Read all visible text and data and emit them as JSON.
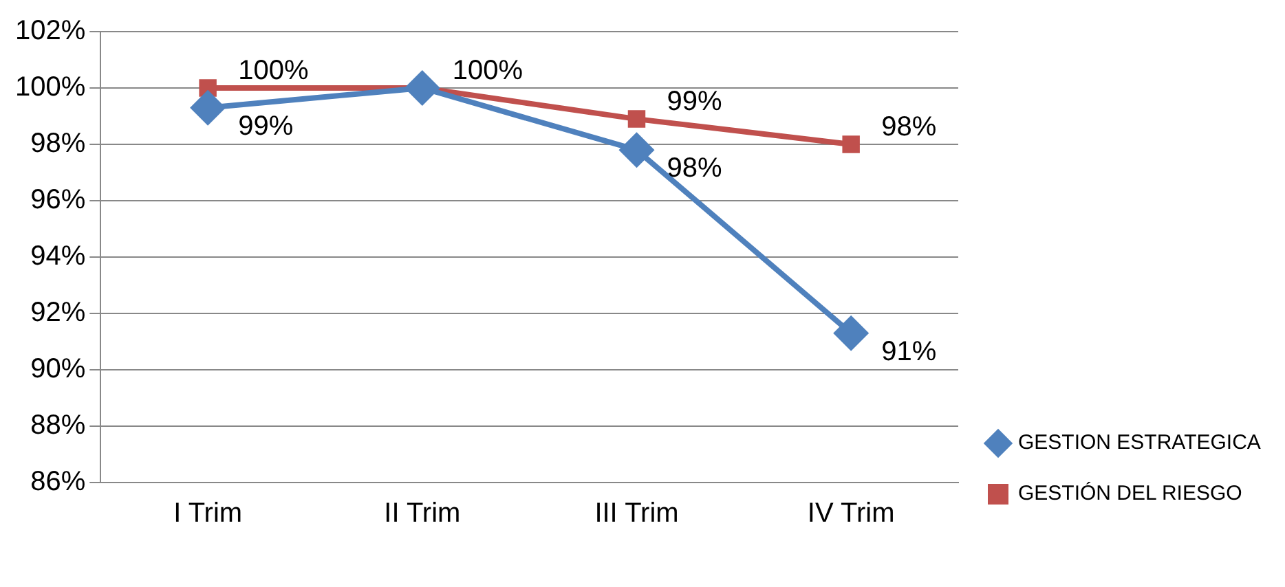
{
  "chart_data": {
    "type": "line",
    "categories": [
      "I Trim",
      "II Trim",
      "III Trim",
      "IV Trim"
    ],
    "series": [
      {
        "name": "GESTION ESTRATEGICA",
        "color": "#4f81bd",
        "marker": "diamond",
        "values": [
          99.3,
          100,
          97.8,
          91.3
        ],
        "value_labels": [
          "99%",
          null,
          "98%",
          "91%"
        ]
      },
      {
        "name": "GESTIÓN DEL RIESGO",
        "color": "#c0504d",
        "marker": "square",
        "values": [
          100,
          100,
          98.9,
          98
        ],
        "value_labels": [
          "100%",
          "100%",
          "99%",
          "98%"
        ]
      }
    ],
    "ylim": [
      86,
      102
    ],
    "yticks": [
      {
        "value": 86,
        "label": "86%"
      },
      {
        "value": 88,
        "label": "88%"
      },
      {
        "value": 90,
        "label": "90%"
      },
      {
        "value": 92,
        "label": "92%"
      },
      {
        "value": 94,
        "label": "94%"
      },
      {
        "value": 96,
        "label": "96%"
      },
      {
        "value": 98,
        "label": "98%"
      },
      {
        "value": 100,
        "label": "100%"
      },
      {
        "value": 102,
        "label": "102%"
      }
    ],
    "grid": "y",
    "legend": "bottom right",
    "line_style": "solid"
  }
}
